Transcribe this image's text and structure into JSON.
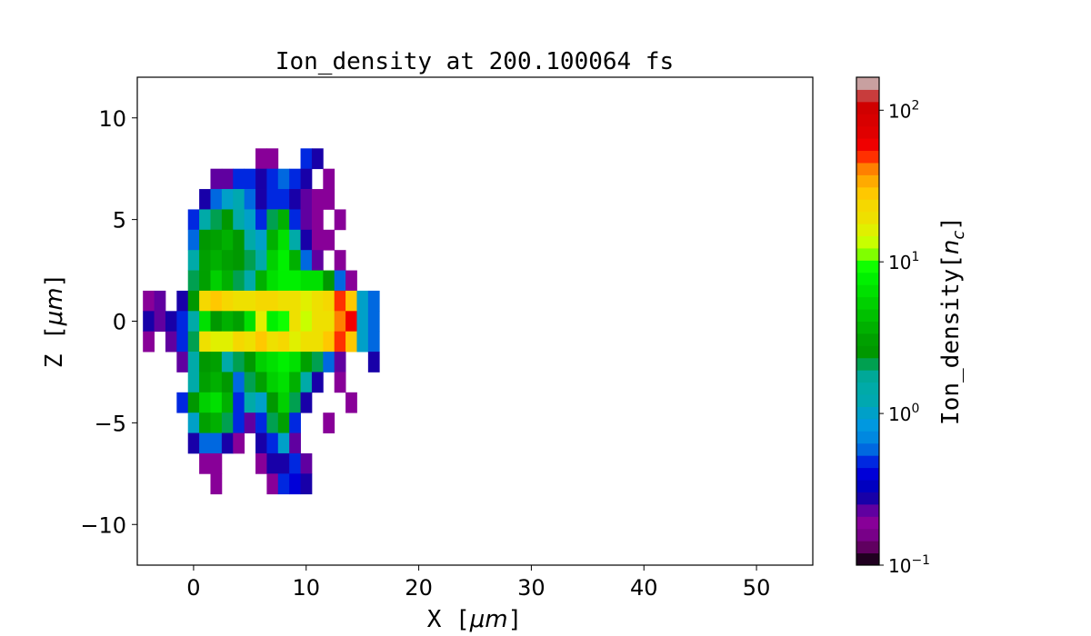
{
  "chart_data": {
    "type": "heatmap",
    "title": "Ion_density at 200.100064 fs",
    "xlabel": "X",
    "xlabel_unit": "μm",
    "ylabel": "Z",
    "ylabel_unit": "μm",
    "xlim": [
      -5,
      55
    ],
    "ylim": [
      -12,
      12
    ],
    "xticks": [
      "0",
      "10",
      "20",
      "30",
      "40",
      "50"
    ],
    "xtick_values": [
      0,
      10,
      20,
      30,
      40,
      50
    ],
    "yticks": [
      "10",
      "5",
      "0",
      "−5",
      "−10"
    ],
    "ytick_values": [
      10,
      5,
      0,
      -5,
      -10
    ],
    "colorbar": {
      "label": "Ion_density",
      "label_unit": "n",
      "label_unit_sub": "c",
      "scale": "log",
      "range": [
        0.1,
        165
      ],
      "ticks": [
        {
          "base": "10",
          "exp": "−1",
          "value": 0.1
        },
        {
          "base": "10",
          "exp": "0",
          "value": 1
        },
        {
          "base": "10",
          "exp": "1",
          "value": 10
        },
        {
          "base": "10",
          "exp": "2",
          "value": 100
        }
      ],
      "colors": [
        "#200020",
        "#600060",
        "#780088",
        "#880098",
        "#6000a0",
        "#1800a8",
        "#0000c0",
        "#0000d8",
        "#0028e0",
        "#0068e0",
        "#0088e0",
        "#0098e0",
        "#00a0c8",
        "#00a8b0",
        "#00aaa8",
        "#00a898",
        "#00a050",
        "#009800",
        "#00a000",
        "#00b000",
        "#00c000",
        "#00d000",
        "#00e000",
        "#00f000",
        "#10ff00",
        "#80ff00",
        "#c8ff00",
        "#e0f000",
        "#eee000",
        "#f5d800",
        "#ffc800",
        "#ffaa00",
        "#ff8000",
        "#ff3000",
        "#f00000",
        "#e00000",
        "#d80000",
        "#d00000",
        "#c83c3c",
        "#c8a0a0"
      ]
    },
    "x": [
      -4,
      -3,
      -2,
      -1,
      0,
      1,
      2,
      3,
      4,
      5,
      6,
      7,
      8,
      9,
      10,
      11,
      12,
      13,
      14,
      15,
      16
    ],
    "z": [
      8,
      7,
      6,
      5,
      4,
      3,
      2,
      1,
      0,
      -1,
      -2,
      -3,
      -4,
      -5,
      -6,
      -7,
      -8
    ],
    "density": [
      [
        null,
        null,
        null,
        null,
        null,
        null,
        null,
        null,
        null,
        null,
        0.2,
        0.2,
        null,
        null,
        0.5,
        0.3,
        null,
        null,
        null,
        null,
        null
      ],
      [
        null,
        null,
        null,
        null,
        null,
        null,
        0.25,
        0.25,
        0.5,
        0.5,
        0.3,
        0.5,
        0.6,
        0.5,
        0.3,
        null,
        0.2,
        null,
        null,
        null,
        null
      ],
      [
        null,
        null,
        null,
        null,
        null,
        0.3,
        0.6,
        1,
        1.3,
        0.6,
        0.3,
        0.5,
        0.5,
        0.3,
        0.25,
        0.2,
        0.2,
        null,
        null,
        null,
        null
      ],
      [
        null,
        null,
        null,
        null,
        0.5,
        1.6,
        2,
        2.5,
        1.6,
        1,
        0.5,
        2,
        4,
        0.5,
        0.25,
        0.2,
        null,
        0.2,
        null,
        null,
        null
      ],
      [
        null,
        null,
        null,
        null,
        0.6,
        2.5,
        3,
        4,
        2.5,
        1.6,
        1,
        4,
        6,
        1.6,
        0.3,
        0.2,
        0.2,
        null,
        null,
        null,
        null
      ],
      [
        null,
        null,
        null,
        null,
        1.6,
        3,
        4,
        3,
        2.5,
        2,
        1.6,
        5,
        8,
        4,
        0.6,
        0.25,
        null,
        0.2,
        null,
        null,
        null
      ],
      [
        null,
        null,
        null,
        null,
        2,
        3,
        5,
        4,
        2,
        1.6,
        4,
        6,
        8,
        8,
        6,
        6,
        2.5,
        0.6,
        0.2,
        null,
        null
      ],
      [
        0.2,
        0.25,
        null,
        0.3,
        2.5,
        25,
        30,
        25,
        20,
        20,
        25,
        25,
        20,
        20,
        16,
        20,
        25,
        50,
        30,
        1,
        0.6
      ],
      [
        0.3,
        0.25,
        0.3,
        0.5,
        1.6,
        6,
        2.5,
        4,
        3,
        6,
        16,
        8,
        10,
        20,
        13,
        20,
        20,
        40,
        63,
        1,
        0.6
      ],
      [
        0.2,
        null,
        0.25,
        0.5,
        2,
        20,
        16,
        16,
        25,
        20,
        30,
        20,
        25,
        16,
        20,
        20,
        30,
        50,
        30,
        1,
        0.6
      ],
      [
        null,
        null,
        null,
        0.25,
        1.6,
        2.5,
        3,
        1.6,
        2,
        2.5,
        5,
        6,
        8,
        6,
        3,
        2,
        0.6,
        0.25,
        null,
        null,
        0.3
      ],
      [
        null,
        null,
        null,
        null,
        1.6,
        3,
        4,
        2.5,
        0.6,
        2,
        3,
        5,
        6,
        4,
        1.6,
        0.3,
        null,
        0.2,
        null,
        null,
        null
      ],
      [
        null,
        null,
        null,
        0.5,
        2.5,
        5,
        6,
        4,
        0.5,
        1.6,
        1,
        2.5,
        5,
        2,
        0.3,
        null,
        null,
        null,
        0.2,
        null,
        null
      ],
      [
        null,
        null,
        null,
        null,
        1,
        3,
        4,
        2,
        0.5,
        0.25,
        0.5,
        2,
        3,
        0.5,
        null,
        null,
        0.2,
        null,
        null,
        null,
        null
      ],
      [
        null,
        null,
        null,
        null,
        0.3,
        0.6,
        0.6,
        0.3,
        0.2,
        null,
        0.3,
        0.5,
        1,
        0.25,
        null,
        null,
        null,
        null,
        null,
        null,
        null
      ],
      [
        null,
        null,
        null,
        null,
        null,
        0.2,
        0.2,
        null,
        null,
        null,
        0.2,
        0.3,
        0.3,
        0.5,
        0.25,
        null,
        null,
        null,
        null,
        null,
        null
      ],
      [
        null,
        null,
        null,
        null,
        null,
        null,
        0.2,
        null,
        null,
        null,
        null,
        0.2,
        0.5,
        0.4,
        0.3,
        null,
        null,
        null,
        null,
        null,
        null
      ]
    ]
  }
}
